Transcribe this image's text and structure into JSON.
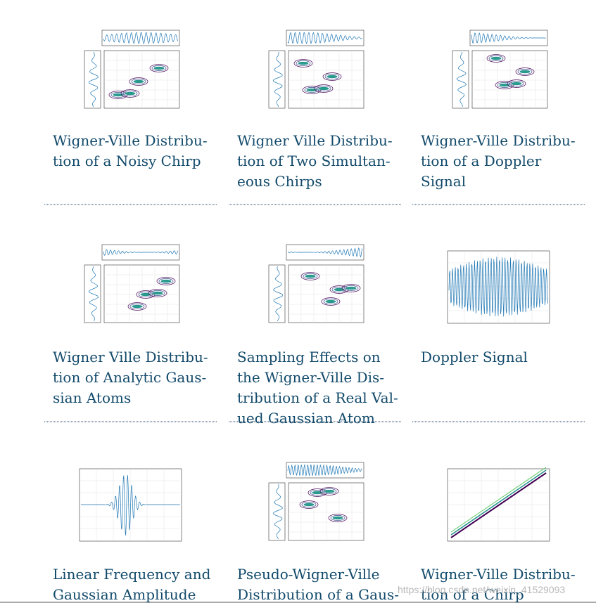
{
  "cards": [
    {
      "title": [
        "Wigner-Ville Distribu-",
        "tion of a Noisy Chirp"
      ],
      "thumb": "wvd"
    },
    {
      "title": [
        "Wigner Ville Distribu-",
        "tion of Two Simultan-",
        "eous Chirps"
      ],
      "thumb": "wvd"
    },
    {
      "title": [
        "Wigner-Ville Distribu-",
        "tion of a Doppler",
        "Signal"
      ],
      "thumb": "wvd"
    },
    {
      "title": [
        "Wigner Ville Distribu-",
        "tion of Analytic Gaus-",
        "sian Atoms"
      ],
      "thumb": "wvd"
    },
    {
      "title": [
        "Sampling Effects on",
        "the Wigner-Ville Dis-",
        "tribution of a Real Val-",
        "ued Gaussian Atom"
      ],
      "thumb": "wvd"
    },
    {
      "title": [
        "Doppler Signal"
      ],
      "thumb": "single"
    },
    {
      "title": [
        "Linear Frequency and",
        "Gaussian Amplitude"
      ],
      "thumb": "single"
    },
    {
      "title": [
        "Pseudo-Wigner-Ville",
        "Distribution of a Gaus-"
      ],
      "thumb": "wvd"
    },
    {
      "title": [
        "Wigner-Ville Distribu-",
        "tion of a Chirp"
      ],
      "thumb": "single"
    }
  ],
  "watermark": "https://blog.csdn.net/weixin_41529093"
}
